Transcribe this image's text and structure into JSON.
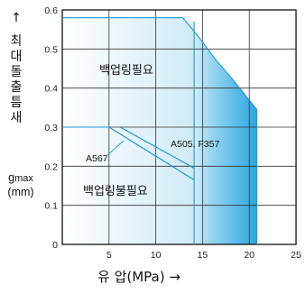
{
  "chart_data": {
    "type": "area",
    "xlabel": "유 압(MPa) →",
    "ylabel_chars": [
      "최",
      "대",
      "돌",
      "출",
      "틈",
      "새"
    ],
    "ylabel_arrow": "↑",
    "ylabel_unit": [
      "g",
      "max",
      "(mm)"
    ],
    "xlim": [
      0,
      25
    ],
    "ylim": [
      0,
      0.6
    ],
    "x_ticks": [
      "5",
      "10",
      "15",
      "20",
      "25"
    ],
    "x_tick_values": [
      5,
      10,
      15,
      20,
      25
    ],
    "y_ticks": [
      "0",
      "0.1",
      "0.2",
      "0.3",
      "0.4",
      "0.5",
      "0.6"
    ],
    "y_tick_values": [
      0,
      0.1,
      0.2,
      0.3,
      0.4,
      0.5,
      0.6
    ],
    "grid": true,
    "regions": [
      {
        "name": "백업링필요",
        "boundary": [
          [
            12.9,
            0.58
          ],
          [
            14.6,
            0.53
          ],
          [
            16.5,
            0.47
          ],
          [
            18.3,
            0.42
          ],
          [
            19.8,
            0.375
          ],
          [
            20.8,
            0.345
          ],
          [
            20.8,
            0
          ]
        ],
        "color": "#3aaee3"
      },
      {
        "name": "백업링불필요",
        "boundary": [
          [
            0,
            0.58
          ],
          [
            12.9,
            0.58
          ],
          [
            14.1,
            0.57
          ],
          [
            14.1,
            0
          ]
        ],
        "color": "#e6f4fb"
      }
    ],
    "series": [
      {
        "name": "A505, F357",
        "values": [
          [
            6.2,
            0.3
          ],
          [
            14.1,
            0.195
          ]
        ]
      },
      {
        "name": "A567",
        "values": [
          [
            5.0,
            0.3
          ],
          [
            14.1,
            0.165
          ]
        ]
      }
    ],
    "annotations": [
      "A505, F357",
      "A567",
      "백업링필요",
      "백업링불필요"
    ]
  }
}
